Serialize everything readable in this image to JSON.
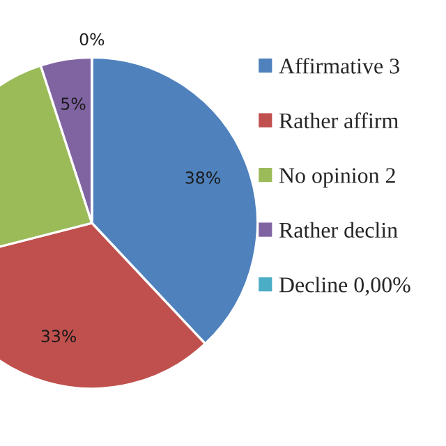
{
  "chart_data": {
    "type": "pie",
    "categories": [
      "Affirmative 3",
      "Rather affirm",
      "No opinion 2",
      "Rather declin",
      "Decline 0,00%"
    ],
    "values": [
      38,
      33,
      24,
      5,
      0
    ],
    "colors": [
      "#4f81bd",
      "#c0504d",
      "#9bbb59",
      "#8064a2",
      "#4bacc6"
    ],
    "value_labels": [
      "38%",
      "33%",
      null,
      "5%",
      "0%"
    ],
    "legend": "right"
  }
}
